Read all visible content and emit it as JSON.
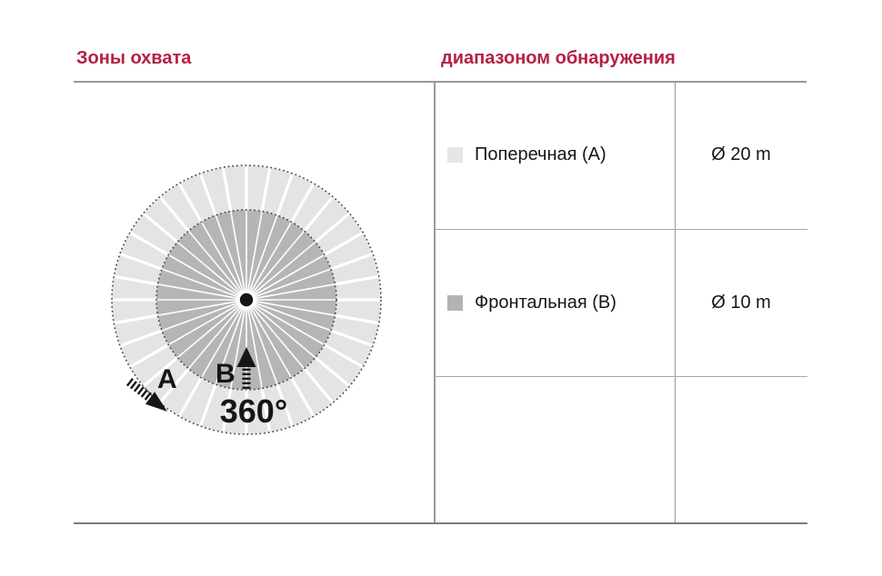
{
  "headers": {
    "left": "Зоны охвата",
    "right": "диапазоном обнаружения"
  },
  "diagram": {
    "sectors": 36,
    "angle_label": "360°",
    "label_a": "A",
    "label_b": "B",
    "outer_zone_color": "#e4e4e4",
    "inner_zone_color": "#b5b5b5"
  },
  "table": {
    "rows": [
      {
        "swatch_color": "#e6e6e6",
        "label": "Поперечная (A)",
        "value": "Ø 20 m"
      },
      {
        "swatch_color": "#b3b3b3",
        "label": "Фронтальная (B)",
        "value": "Ø 10 m"
      }
    ]
  },
  "colors": {
    "accent": "#b52045"
  }
}
